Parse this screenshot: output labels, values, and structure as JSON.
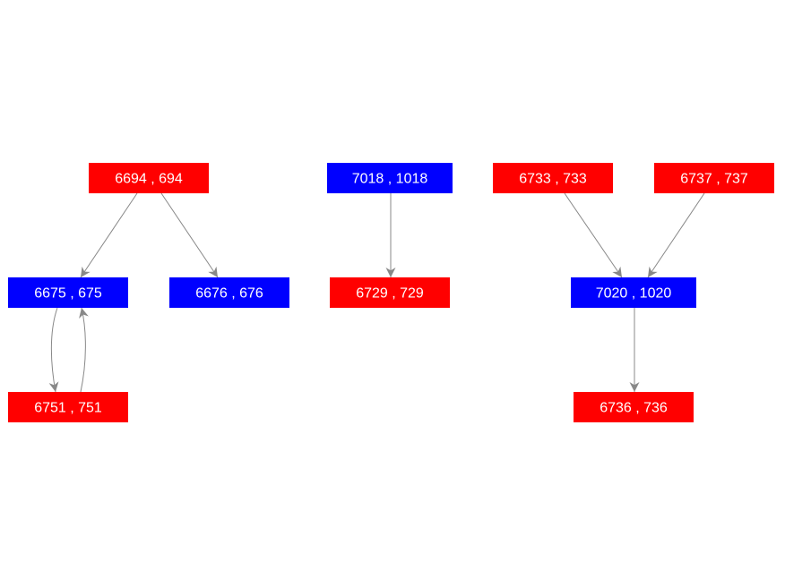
{
  "colors": {
    "red": "#ff0000",
    "blue": "#0000ff",
    "edge": "#888888",
    "text": "#ffffff"
  },
  "nodes": [
    {
      "id": "6694",
      "label": "6694 ,  694",
      "color": "red"
    },
    {
      "id": "6675",
      "label": "6675 ,  675",
      "color": "blue"
    },
    {
      "id": "6676",
      "label": "6676 ,  676",
      "color": "blue"
    },
    {
      "id": "6751",
      "label": "6751 ,  751",
      "color": "red"
    },
    {
      "id": "7018",
      "label": "7018 , 1018",
      "color": "blue"
    },
    {
      "id": "6729",
      "label": "6729 ,  729",
      "color": "red"
    },
    {
      "id": "6733",
      "label": "6733 ,  733",
      "color": "red"
    },
    {
      "id": "6737",
      "label": "6737 ,  737",
      "color": "red"
    },
    {
      "id": "7020",
      "label": "7020 , 1020",
      "color": "blue"
    },
    {
      "id": "6736",
      "label": "6736 ,  736",
      "color": "red"
    }
  ],
  "edges": [
    {
      "from": "6694",
      "to": "6675"
    },
    {
      "from": "6694",
      "to": "6676"
    },
    {
      "from": "6675",
      "to": "6751"
    },
    {
      "from": "6751",
      "to": "6675"
    },
    {
      "from": "7018",
      "to": "6729"
    },
    {
      "from": "6733",
      "to": "7020"
    },
    {
      "from": "6737",
      "to": "7020"
    },
    {
      "from": "7020",
      "to": "6736"
    }
  ]
}
